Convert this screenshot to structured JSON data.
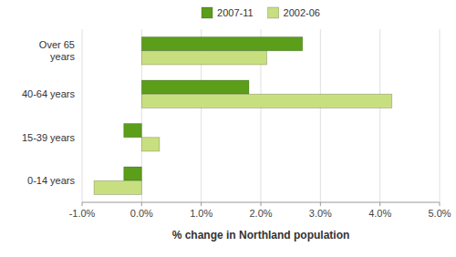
{
  "chart_data": {
    "type": "bar",
    "orientation": "horizontal",
    "categories": [
      "0-14 years",
      "15-39 years",
      "40-64 years",
      "Over 65\nyears"
    ],
    "series": [
      {
        "name": "2007-11",
        "color": "#5a9e1a",
        "values": [
          -0.003,
          -0.003,
          0.018,
          0.027
        ]
      },
      {
        "name": "2002-06",
        "color": "#c8df80",
        "values": [
          -0.008,
          0.003,
          0.042,
          0.021
        ]
      }
    ],
    "x_label": "% change in Northland population",
    "xlim": [
      -0.01,
      0.05
    ],
    "xticks": [
      {
        "value": -0.01,
        "label": "-1.0%"
      },
      {
        "value": 0.0,
        "label": "0.0%"
      },
      {
        "value": 0.01,
        "label": "1.0%"
      },
      {
        "value": 0.02,
        "label": "2.0%"
      },
      {
        "value": 0.03,
        "label": "3.0%"
      },
      {
        "value": 0.04,
        "label": "4.0%"
      },
      {
        "value": 0.05,
        "label": "5.0%"
      }
    ],
    "grid": true,
    "legend": "top"
  }
}
